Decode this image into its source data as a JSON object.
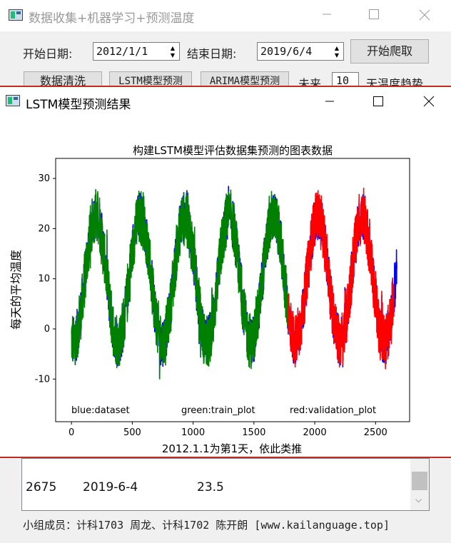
{
  "back_window": {
    "title": "数据收集+机器学习+预测温度",
    "start_label": "开始日期:",
    "start_value": "2012/1/1",
    "end_label": "结束日期:",
    "end_value": "2019/6/4",
    "crawl_button": "开始爬取",
    "clean_button": "数据清洗",
    "lstm_button": "LSTM模型预测",
    "arima_button": "ARIMA模型预测",
    "future_label": "未来",
    "future_days": "10",
    "trend_label": "天温度趋势",
    "list_row": {
      "index": "2675",
      "date": "2019-6-4",
      "temp": "23.5"
    },
    "footer": "小组成员：计科1703 周龙、计科1702 陈开朗 [www.kailanguage.top]"
  },
  "front_window": {
    "title": "LSTM模型预测结果"
  },
  "chart_data": {
    "type": "line",
    "title": "构建LSTM模型评估数据集预测的图表数据",
    "xlabel": "2012.1.1为第1天，依此类推",
    "ylabel": "每天的平均温度",
    "xlim": [
      -130,
      2780
    ],
    "ylim": [
      -18.5,
      34
    ],
    "x_ticks": [
      "0",
      "500",
      "1000",
      "1500",
      "2000",
      "2500"
    ],
    "y_ticks": [
      "-10",
      "0",
      "10",
      "20",
      "30"
    ],
    "series": [
      {
        "name": "blue:dataset",
        "color": "#0000ff",
        "x_range": [
          0,
          2675
        ]
      },
      {
        "name": "green:train_plot",
        "color": "#008000",
        "x_range": [
          0,
          1780
        ]
      },
      {
        "name": "red:validation_plot",
        "color": "#ff0000",
        "x_range": [
          1780,
          2650
        ]
      }
    ],
    "seasonal_model": {
      "mean": 10,
      "amplitude": 12.5,
      "period_days": 365,
      "peak_day": 200,
      "noise": 5
    },
    "grid": false,
    "legend_placement": "bottom (text annotations)"
  }
}
